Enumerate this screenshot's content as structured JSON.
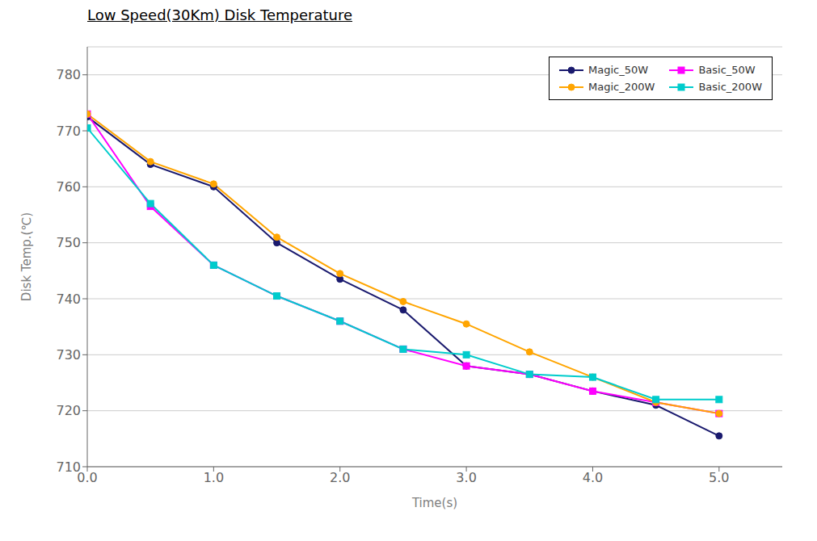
{
  "chart_data": {
    "type": "line",
    "title": "Low Speed(30Km) Disk Temperature",
    "xlabel": "Time(s)",
    "ylabel": "Disk Temp.(℃)",
    "x": [
      0.0,
      0.5,
      1.0,
      1.5,
      2.0,
      2.5,
      3.0,
      3.5,
      4.0,
      4.5,
      5.0
    ],
    "series": [
      {
        "name": "Magic_50W",
        "color": "#1a1a6e",
        "marker": "circle",
        "values": [
          772.5,
          764.0,
          760.0,
          750.0,
          743.5,
          738.0,
          728.0,
          726.5,
          723.5,
          721.0,
          715.5
        ]
      },
      {
        "name": "Basic_50W",
        "color": "#ff00ff",
        "marker": "square",
        "values": [
          773.0,
          756.5,
          746.0,
          740.5,
          736.0,
          731.0,
          728.0,
          726.5,
          723.5,
          721.5,
          719.5
        ]
      },
      {
        "name": "Magic_200W",
        "color": "#ffa500",
        "marker": "circle",
        "values": [
          773.0,
          764.5,
          760.5,
          751.0,
          744.5,
          739.5,
          735.5,
          730.5,
          726.0,
          721.5,
          719.5
        ]
      },
      {
        "name": "Basic_200W",
        "color": "#00cccc",
        "marker": "square",
        "values": [
          770.5,
          757.0,
          746.0,
          740.5,
          736.0,
          731.0,
          730.0,
          726.5,
          726.0,
          722.0,
          722.0
        ]
      }
    ],
    "xlim": [
      0.0,
      5.5
    ],
    "ylim": [
      710,
      785
    ],
    "xticks": [
      {
        "value": 0.0,
        "label": "0.0"
      },
      {
        "value": 1.0,
        "label": "1.0"
      },
      {
        "value": 2.0,
        "label": "2.0"
      },
      {
        "value": 3.0,
        "label": "3.0"
      },
      {
        "value": 4.0,
        "label": "4.0"
      },
      {
        "value": 5.0,
        "label": "5.0"
      }
    ],
    "yticks": [
      710,
      720,
      730,
      740,
      750,
      760,
      770,
      780
    ],
    "grid": "y",
    "legend": "upper right"
  }
}
